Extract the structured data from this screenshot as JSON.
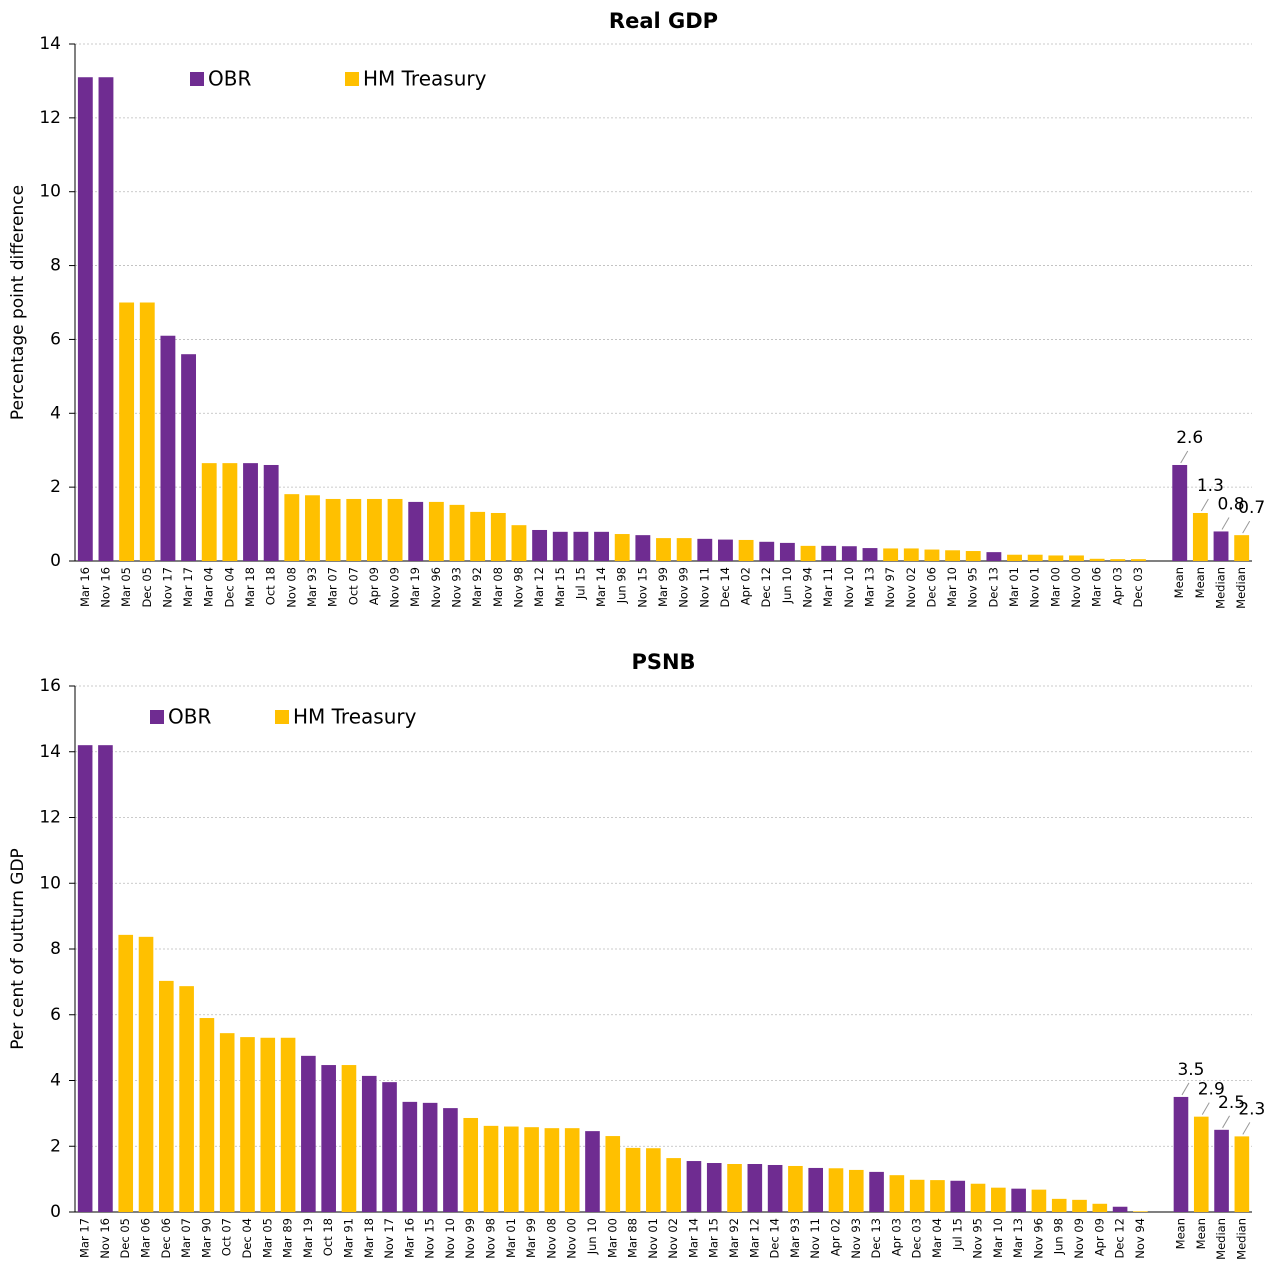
{
  "chart_data": [
    {
      "type": "bar",
      "title": "Real GDP",
      "y_label": "Percentage point difference",
      "categories": [
        "Mar 16",
        "Nov 16",
        "Mar 05",
        "Dec 05",
        "Nov 17",
        "Mar 17",
        "Mar 04",
        "Dec 04",
        "Mar 18",
        "Oct 18",
        "Nov 08",
        "Mar 93",
        "Mar 07",
        "Oct 07",
        "Apr 09",
        "Nov 09",
        "Mar 19",
        "Nov 96",
        "Nov 93",
        "Mar 92",
        "Mar 08",
        "Nov 98",
        "Mar 12",
        "Mar 15",
        "Jul 15",
        "Mar 14",
        "Jun 98",
        "Nov 15",
        "Mar 99",
        "Nov 99",
        "Nov 11",
        "Dec 14",
        "Apr 02",
        "Dec 12",
        "Jun 10",
        "Nov 94",
        "Mar 11",
        "Nov 10",
        "Mar 13",
        "Nov 97",
        "Nov 02",
        "Dec 06",
        "Mar 10",
        "Nov 95",
        "Dec 13",
        "Mar 01",
        "Nov 01",
        "Mar 00",
        "Nov 00",
        "Mar 06",
        "Apr 03",
        "Dec 03",
        null,
        "Mean",
        "Mean",
        "Median",
        "Median"
      ],
      "series": [
        {
          "name": "OBR",
          "color": "#6f2c91",
          "values": [
            13.1,
            13.1,
            null,
            null,
            6.1,
            5.6,
            null,
            null,
            2.65,
            2.6,
            null,
            null,
            null,
            null,
            null,
            null,
            1.6,
            null,
            null,
            null,
            null,
            null,
            0.84,
            0.79,
            0.79,
            0.79,
            null,
            0.7,
            null,
            null,
            0.6,
            0.58,
            null,
            0.52,
            0.49,
            null,
            0.41,
            0.4,
            0.35,
            null,
            null,
            null,
            null,
            null,
            0.24,
            null,
            null,
            null,
            null,
            null,
            null,
            null,
            null,
            2.6,
            null,
            0.8,
            null
          ],
          "value_labels": [
            null,
            null,
            null,
            null,
            null,
            null,
            null,
            null,
            null,
            null,
            null,
            null,
            null,
            null,
            null,
            null,
            null,
            null,
            null,
            null,
            null,
            null,
            null,
            null,
            null,
            null,
            null,
            null,
            null,
            null,
            null,
            null,
            null,
            null,
            null,
            null,
            null,
            null,
            null,
            null,
            null,
            null,
            null,
            null,
            null,
            null,
            null,
            null,
            null,
            null,
            null,
            null,
            null,
            "2.6",
            null,
            "0.8",
            null
          ]
        },
        {
          "name": "HM Treasury",
          "color": "#ffc000",
          "values": [
            null,
            null,
            7.0,
            7.0,
            null,
            null,
            2.65,
            2.65,
            null,
            null,
            1.81,
            1.78,
            1.68,
            1.68,
            1.68,
            1.68,
            null,
            1.6,
            1.52,
            1.33,
            1.3,
            0.97,
            null,
            null,
            null,
            null,
            0.73,
            null,
            0.62,
            0.62,
            null,
            null,
            0.57,
            null,
            null,
            0.41,
            null,
            null,
            null,
            0.34,
            0.34,
            0.31,
            0.29,
            0.27,
            null,
            0.17,
            0.17,
            0.15,
            0.15,
            0.06,
            0.05,
            0.05,
            null,
            null,
            1.3,
            null,
            0.7
          ],
          "value_labels": [
            null,
            null,
            null,
            null,
            null,
            null,
            null,
            null,
            null,
            null,
            null,
            null,
            null,
            null,
            null,
            null,
            null,
            null,
            null,
            null,
            null,
            null,
            null,
            null,
            null,
            null,
            null,
            null,
            null,
            null,
            null,
            null,
            null,
            null,
            null,
            null,
            null,
            null,
            null,
            null,
            null,
            null,
            null,
            null,
            null,
            null,
            null,
            null,
            null,
            null,
            null,
            null,
            null,
            null,
            "1.3",
            null,
            "0.7"
          ]
        }
      ],
      "ylim": [
        0,
        14
      ],
      "yticks": [
        0,
        2,
        4,
        6,
        8,
        10,
        12,
        14
      ],
      "grid": true,
      "legend": "upper left"
    },
    {
      "type": "bar",
      "title": "PSNB",
      "y_label": "Per cent of outturn GDP",
      "categories": [
        "Mar 17",
        "Nov 16",
        "Dec 05",
        "Mar 06",
        "Dec 06",
        "Mar 07",
        "Mar 90",
        "Oct 07",
        "Dec 04",
        "Mar 05",
        "Mar 89",
        "Mar 19",
        "Oct 18",
        "Mar 91",
        "Mar 18",
        "Nov 17",
        "Mar 16",
        "Nov 15",
        "Nov 10",
        "Nov 99",
        "Nov 98",
        "Mar 01",
        "Mar 99",
        "Nov 08",
        "Nov 00",
        "Jun 10",
        "Mar 00",
        "Mar 88",
        "Nov 01",
        "Nov 02",
        "Mar 14",
        "Mar 15",
        "Mar 92",
        "Mar 12",
        "Dec 14",
        "Mar 93",
        "Nov 11",
        "Apr 02",
        "Nov 93",
        "Dec 13",
        "Apr 03",
        "Dec 03",
        "Mar 04",
        "Jul 15",
        "Nov 95",
        "Mar 10",
        "Mar 13",
        "Nov 96",
        "Jun 98",
        "Nov 09",
        "Apr 09",
        "Dec 12",
        "Nov 94",
        null,
        "Mean",
        "Mean",
        "Median",
        "Median"
      ],
      "series": [
        {
          "name": "OBR",
          "color": "#6f2c91",
          "values": [
            14.2,
            14.2,
            null,
            null,
            null,
            null,
            null,
            null,
            null,
            null,
            null,
            4.75,
            4.47,
            null,
            4.14,
            3.95,
            3.35,
            3.32,
            3.16,
            null,
            null,
            null,
            null,
            null,
            null,
            2.46,
            null,
            null,
            null,
            null,
            1.55,
            1.49,
            null,
            1.46,
            1.43,
            null,
            1.34,
            null,
            null,
            1.22,
            null,
            null,
            null,
            0.95,
            null,
            null,
            0.71,
            null,
            null,
            null,
            null,
            0.16,
            null,
            null,
            3.5,
            null,
            2.5,
            null
          ],
          "value_labels": [
            null,
            null,
            null,
            null,
            null,
            null,
            null,
            null,
            null,
            null,
            null,
            null,
            null,
            null,
            null,
            null,
            null,
            null,
            null,
            null,
            null,
            null,
            null,
            null,
            null,
            null,
            null,
            null,
            null,
            null,
            null,
            null,
            null,
            null,
            null,
            null,
            null,
            null,
            null,
            null,
            null,
            null,
            null,
            null,
            null,
            null,
            null,
            null,
            null,
            null,
            null,
            null,
            null,
            null,
            "3.5",
            null,
            "2.5",
            null
          ]
        },
        {
          "name": "HM Treasury",
          "color": "#ffc000",
          "values": [
            null,
            null,
            8.43,
            8.37,
            7.03,
            6.87,
            5.9,
            5.44,
            5.32,
            5.3,
            5.3,
            null,
            null,
            4.47,
            null,
            null,
            null,
            null,
            null,
            2.86,
            2.62,
            2.6,
            2.58,
            2.55,
            2.55,
            null,
            2.31,
            1.95,
            1.94,
            1.64,
            null,
            null,
            1.46,
            null,
            null,
            1.4,
            null,
            1.33,
            1.28,
            null,
            1.12,
            0.98,
            0.97,
            null,
            0.86,
            0.74,
            null,
            0.68,
            0.4,
            0.37,
            0.25,
            null,
            0.02,
            null,
            null,
            2.9,
            null,
            2.3
          ],
          "value_labels": [
            null,
            null,
            null,
            null,
            null,
            null,
            null,
            null,
            null,
            null,
            null,
            null,
            null,
            null,
            null,
            null,
            null,
            null,
            null,
            null,
            null,
            null,
            null,
            null,
            null,
            null,
            null,
            null,
            null,
            null,
            null,
            null,
            null,
            null,
            null,
            null,
            null,
            null,
            null,
            null,
            null,
            null,
            null,
            null,
            null,
            null,
            null,
            null,
            null,
            null,
            null,
            null,
            null,
            null,
            null,
            "2.9",
            null,
            "2.3"
          ]
        }
      ],
      "ylim": [
        0,
        16
      ],
      "yticks": [
        0,
        2,
        4,
        6,
        8,
        10,
        12,
        14,
        16
      ],
      "grid": true,
      "legend": "upper left"
    }
  ]
}
